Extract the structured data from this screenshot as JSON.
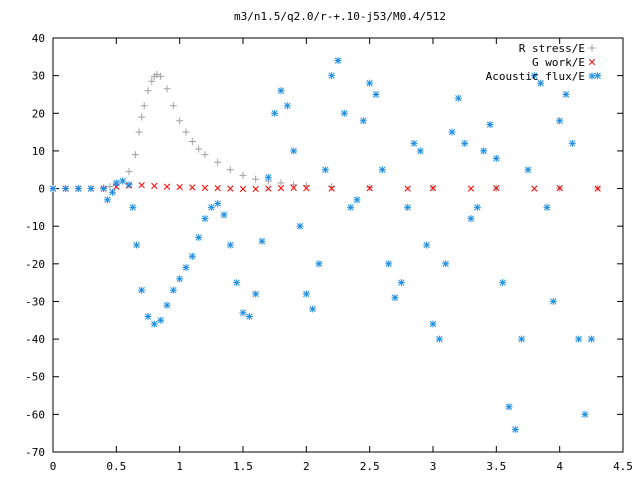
{
  "chart_data": {
    "type": "scatter",
    "title": "m3/n1.5/q2.0/r-+.10-j53/M0.4/512",
    "xlabel": "",
    "ylabel": "",
    "xlim": [
      0,
      4.5
    ],
    "ylim": [
      -70,
      40
    ],
    "xticks": [
      "0",
      "0.5",
      "1",
      "1.5",
      "2",
      "2.5",
      "3",
      "3.5",
      "4",
      "4.5"
    ],
    "yticks": [
      "40",
      "30",
      "20",
      "10",
      "0",
      "-10",
      "-20",
      "-30",
      "-40",
      "-50",
      "-60",
      "-70"
    ],
    "grid": false,
    "legend_position": "top-right",
    "series": [
      {
        "name": "R stress/E",
        "marker": "plus",
        "color": "#a0a0a0",
        "x": [
          0.0,
          0.1,
          0.2,
          0.3,
          0.4,
          0.45,
          0.5,
          0.55,
          0.6,
          0.65,
          0.68,
          0.7,
          0.72,
          0.75,
          0.78,
          0.8,
          0.82,
          0.85,
          0.9,
          0.95,
          1.0,
          1.05,
          1.1,
          1.15,
          1.2,
          1.3,
          1.4,
          1.5,
          1.6,
          1.7,
          1.8,
          1.9,
          2.0,
          2.2,
          2.5,
          3.0,
          3.5,
          4.0,
          4.3
        ],
        "y": [
          0.0,
          0.0,
          0.0,
          0.0,
          0.2,
          0.5,
          1.0,
          2.0,
          4.5,
          9.0,
          15.0,
          19.0,
          22.0,
          26.0,
          28.5,
          29.8,
          30.3,
          29.8,
          26.5,
          22.0,
          18.0,
          15.0,
          12.5,
          10.5,
          9.0,
          7.0,
          5.0,
          3.5,
          2.5,
          2.0,
          1.5,
          1.0,
          0.8,
          0.5,
          0.3,
          0.2,
          0.1,
          0.1,
          0.1
        ]
      },
      {
        "name": "G work/E",
        "marker": "cross",
        "color": "#ff0000",
        "x": [
          0.0,
          0.1,
          0.2,
          0.3,
          0.4,
          0.5,
          0.6,
          0.7,
          0.8,
          0.9,
          1.0,
          1.1,
          1.2,
          1.3,
          1.4,
          1.5,
          1.6,
          1.7,
          1.8,
          1.9,
          2.0,
          2.2,
          2.5,
          2.8,
          3.0,
          3.3,
          3.5,
          3.8,
          4.0,
          4.3
        ],
        "y": [
          0.0,
          0.0,
          0.0,
          0.0,
          0.0,
          0.5,
          0.8,
          0.9,
          0.7,
          0.5,
          0.4,
          0.3,
          0.2,
          0.1,
          0.0,
          -0.1,
          -0.1,
          0.0,
          0.1,
          0.2,
          0.1,
          0.0,
          0.1,
          0.0,
          0.1,
          0.0,
          0.1,
          0.0,
          0.1,
          0.0
        ]
      },
      {
        "name": "Acoustic flux/E",
        "marker": "star",
        "color": "#1f8ee0",
        "x": [
          0.0,
          0.1,
          0.2,
          0.3,
          0.4,
          0.43,
          0.47,
          0.5,
          0.55,
          0.6,
          0.63,
          0.66,
          0.7,
          0.75,
          0.8,
          0.85,
          0.9,
          0.95,
          1.0,
          1.05,
          1.1,
          1.15,
          1.2,
          1.25,
          1.3,
          1.35,
          1.4,
          1.45,
          1.5,
          1.55,
          1.6,
          1.65,
          1.7,
          1.75,
          1.8,
          1.85,
          1.9,
          1.95,
          2.0,
          2.05,
          2.1,
          2.15,
          2.2,
          2.25,
          2.3,
          2.35,
          2.4,
          2.45,
          2.5,
          2.55,
          2.6,
          2.65,
          2.7,
          2.75,
          2.8,
          2.85,
          2.9,
          2.95,
          3.0,
          3.05,
          3.1,
          3.15,
          3.2,
          3.25,
          3.3,
          3.35,
          3.4,
          3.45,
          3.5,
          3.55,
          3.6,
          3.65,
          3.7,
          3.75,
          3.8,
          3.85,
          3.9,
          3.95,
          4.0,
          4.05,
          4.1,
          4.15,
          4.2,
          4.25,
          4.3
        ],
        "y": [
          0.0,
          0.0,
          0.0,
          0.0,
          0.0,
          -3.0,
          -1.0,
          1.5,
          2.0,
          1.0,
          -5.0,
          -15.0,
          -27.0,
          -34.0,
          -36.0,
          -35.0,
          -31.0,
          -27.0,
          -24.0,
          -21.0,
          -18.0,
          -13.0,
          -8.0,
          -5.0,
          -4.0,
          -7.0,
          -15.0,
          -25.0,
          -33.0,
          -34.0,
          -28.0,
          -14.0,
          3.0,
          20.0,
          26.0,
          22.0,
          10.0,
          -10.0,
          -28.0,
          -32.0,
          -20.0,
          5.0,
          30.0,
          34.0,
          20.0,
          -5.0,
          -3.0,
          18.0,
          28.0,
          25.0,
          5.0,
          -20.0,
          -29.0,
          -25.0,
          -5.0,
          12.0,
          10.0,
          -15.0,
          -36.0,
          -40.0,
          -20.0,
          15.0,
          24.0,
          12.0,
          -8.0,
          -5.0,
          10.0,
          17.0,
          8.0,
          -25.0,
          -58.0,
          -64.0,
          -40.0,
          5.0,
          30.0,
          28.0,
          -5.0,
          -30.0,
          18.0,
          25.0,
          12.0,
          -40.0,
          -60.0,
          -40.0,
          30.0
        ]
      }
    ]
  }
}
